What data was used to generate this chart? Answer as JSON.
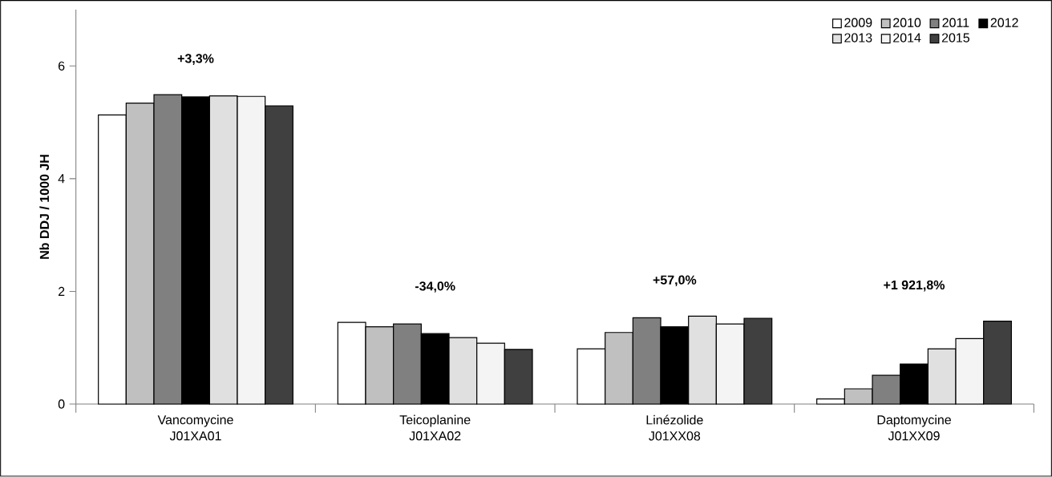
{
  "chart_data": {
    "type": "bar",
    "ylabel": "Nb DDJ / 1000 JH",
    "categories": [
      "Vancomycine J01XA01",
      "Teicoplanine J01XA02",
      "Linézolide J01XX08",
      "Daptomycine J01XX09"
    ],
    "series": [
      {
        "name": "2009",
        "color": "#ffffff",
        "values": [
          5.13,
          1.45,
          0.98,
          0.09
        ]
      },
      {
        "name": "2010",
        "color": "#c0c0c0",
        "values": [
          5.34,
          1.37,
          1.27,
          0.27
        ]
      },
      {
        "name": "2011",
        "color": "#808080",
        "values": [
          5.49,
          1.42,
          1.53,
          0.51
        ]
      },
      {
        "name": "2012",
        "color": "#000000",
        "values": [
          5.45,
          1.25,
          1.37,
          0.71
        ]
      },
      {
        "name": "2013",
        "color": "#e0e0e0",
        "values": [
          5.47,
          1.18,
          1.56,
          0.98
        ]
      },
      {
        "name": "2014",
        "color": "#f4f4f4",
        "values": [
          5.46,
          1.08,
          1.42,
          1.16
        ]
      },
      {
        "name": "2015",
        "color": "#404040",
        "values": [
          5.29,
          0.97,
          1.52,
          1.47
        ]
      }
    ],
    "annotations": [
      "+3,3%",
      "-34,0%",
      "+57,0%",
      "+1 921,8%"
    ],
    "ylim": [
      0,
      7
    ],
    "yticks": [
      0,
      2,
      4,
      6
    ],
    "legend": "top right"
  }
}
